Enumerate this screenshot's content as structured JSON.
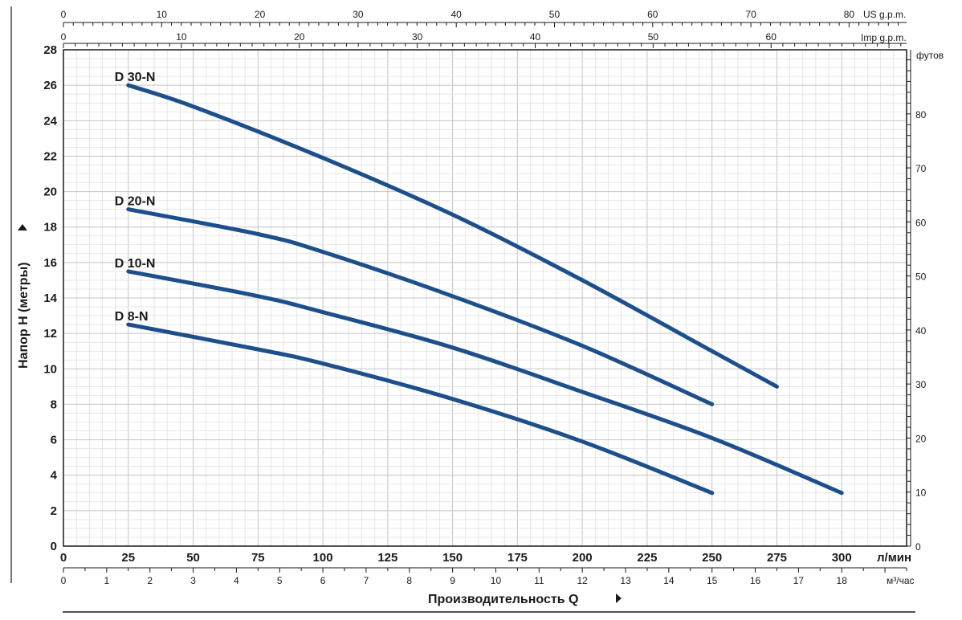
{
  "chart_data": {
    "type": "line",
    "x_label": "Производительность  Q",
    "x_unit_lmin": "л/мин",
    "x_unit_m3h": "м³/час",
    "x_unit_usgpm": "US g.p.m.",
    "x_unit_impgpm": "Imp g.p.m.",
    "y_label": "Напор H (метры)",
    "y2_unit": "футов",
    "xlim": [
      0,
      325
    ],
    "ylim": [
      0,
      28
    ],
    "grid": true,
    "x_ticks_lmin": [
      0,
      25,
      50,
      75,
      100,
      125,
      150,
      175,
      200,
      225,
      250,
      275,
      300
    ],
    "x_ticks_m3h": [
      0,
      1,
      2,
      3,
      4,
      5,
      6,
      7,
      8,
      9,
      10,
      11,
      12,
      13,
      14,
      15,
      16,
      17,
      18
    ],
    "x_ticks_usgpm": [
      0,
      10,
      20,
      30,
      40,
      50,
      60,
      70,
      80
    ],
    "x_ticks_impgpm": [
      0,
      10,
      20,
      30,
      40,
      50,
      60
    ],
    "y_ticks": [
      0,
      2,
      4,
      6,
      8,
      10,
      12,
      14,
      16,
      18,
      20,
      22,
      24,
      26,
      28
    ],
    "y2_ticks": [
      0,
      10,
      20,
      30,
      40,
      50,
      60,
      70,
      80
    ],
    "line_color": "#1d4f8c",
    "series": [
      {
        "name": "D 30-N",
        "x": [
          25,
          50,
          100,
          150,
          200,
          250,
          275
        ],
        "y": [
          26,
          24.8,
          21.9,
          18.7,
          15.0,
          11.0,
          9.0
        ]
      },
      {
        "name": "D 20-N",
        "x": [
          25,
          75,
          100,
          150,
          200,
          250
        ],
        "y": [
          19,
          17.6,
          16.6,
          14.1,
          11.3,
          8.0
        ]
      },
      {
        "name": "D 10-N",
        "x": [
          25,
          75,
          100,
          150,
          200,
          250,
          300
        ],
        "y": [
          15.5,
          14.1,
          13.2,
          11.2,
          8.7,
          6.1,
          3.0
        ]
      },
      {
        "name": "D 8-N",
        "x": [
          25,
          75,
          100,
          150,
          200,
          250
        ],
        "y": [
          12.5,
          11.1,
          10.3,
          8.3,
          5.9,
          3.0
        ]
      }
    ]
  }
}
